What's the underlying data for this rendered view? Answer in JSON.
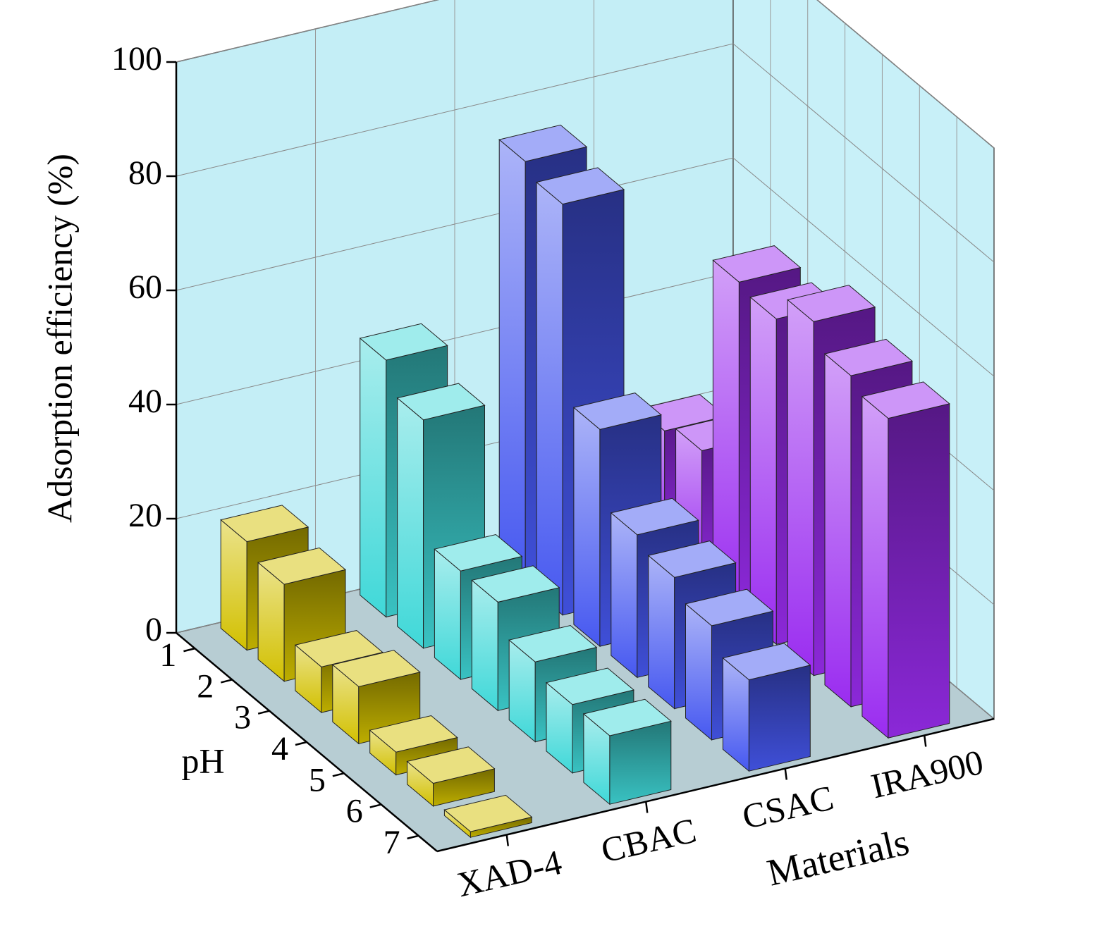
{
  "chart_data": {
    "type": "bar3d",
    "ylabel": "Adsorption efficiency (%)",
    "xlabel": "pH",
    "serieslabel": "Materials",
    "x": [
      1,
      2,
      3,
      4,
      5,
      6,
      7
    ],
    "series": [
      {
        "name": "XAD-4",
        "color": "#d2c000",
        "values": [
          19,
          17,
          8,
          10,
          4,
          4,
          1
        ]
      },
      {
        "name": "CBAC",
        "color": "#3fd8d8",
        "values": [
          45,
          40,
          19,
          19,
          14,
          12,
          12
        ]
      },
      {
        "name": "CSAC",
        "color": "#4658f0",
        "values": [
          74,
          72,
          38,
          25,
          23,
          20,
          16
        ]
      },
      {
        "name": "IRA900",
        "color": "#9a2cf0",
        "values": [
          21,
          23,
          58,
          57,
          62,
          58,
          56
        ]
      }
    ],
    "ylim": [
      0,
      100
    ],
    "yticks": [
      0,
      20,
      40,
      60,
      80,
      100
    ],
    "grid": true
  }
}
